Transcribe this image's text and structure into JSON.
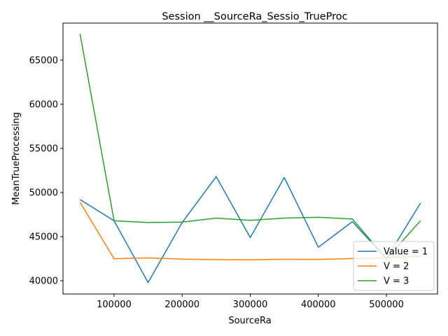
{
  "chart_data": {
    "type": "line",
    "title": "Session __SourceRa_Sessio_TrueProc",
    "xlabel": "SourceRa",
    "ylabel": "MeanTrueProcessing",
    "xlim": [
      25000,
      575000
    ],
    "ylim": [
      38500,
      69200
    ],
    "x_ticks": [
      100000,
      200000,
      300000,
      400000,
      500000
    ],
    "y_ticks": [
      40000,
      45000,
      50000,
      55000,
      60000,
      65000
    ],
    "x": [
      50000,
      100000,
      150000,
      200000,
      250000,
      300000,
      350000,
      400000,
      450000,
      500000,
      550000
    ],
    "legend_position": "lower right",
    "grid": false,
    "series": [
      {
        "name": "Value = 1",
        "color": "#1f77b4",
        "values": [
          49200,
          46800,
          39800,
          46600,
          51800,
          44900,
          51700,
          43800,
          46700,
          42500,
          48800
        ]
      },
      {
        "name": "V = 2",
        "color": "#ff7f0e",
        "values": [
          48900,
          42500,
          42600,
          42450,
          42400,
          42380,
          42430,
          42420,
          42520,
          42600,
          42780
        ]
      },
      {
        "name": "V = 3",
        "color": "#2ca02c",
        "values": [
          68000,
          46800,
          46600,
          46650,
          47100,
          46850,
          47100,
          47200,
          47000,
          42500,
          46800
        ]
      }
    ]
  }
}
